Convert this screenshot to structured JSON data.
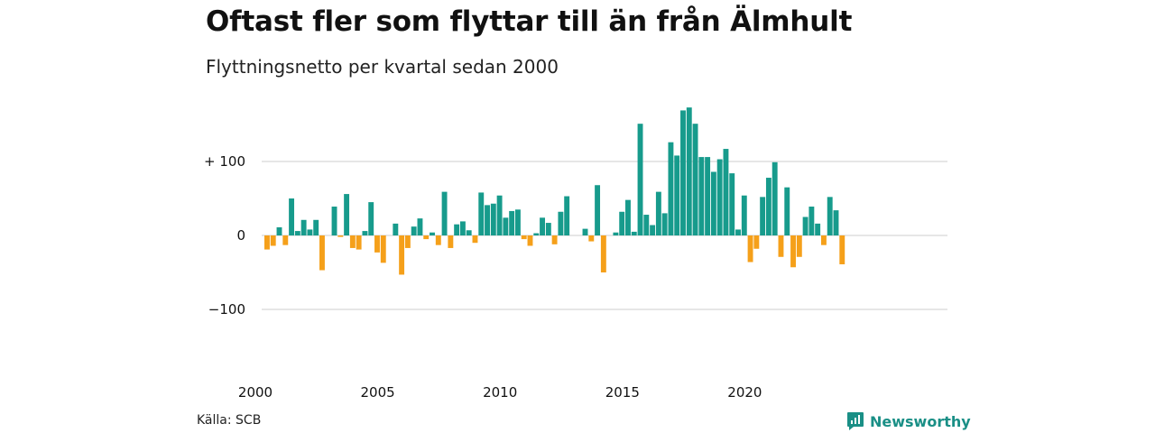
{
  "title": "Oftast fler som flyttar till än från Älmhult",
  "subtitle": "Flyttningsnetto per kvartal sedan 2000",
  "source": "Källa: SCB",
  "brand": "Newsworthy",
  "colors": {
    "positive": "#179b8c",
    "negative": "#f5a01a",
    "grid": "#dddddd",
    "brand": "#1a8f86"
  },
  "chart_data": {
    "type": "bar",
    "xlabel": "",
    "ylabel": "",
    "ylim": [
      -130,
      175
    ],
    "yticks": [
      {
        "value": 100,
        "label": "+ 100"
      },
      {
        "value": 0,
        "label": "0"
      },
      {
        "value": -100,
        "label": "−100"
      }
    ],
    "xticks": [
      {
        "year": 2000,
        "label": "2000"
      },
      {
        "year": 2005,
        "label": "2005"
      },
      {
        "year": 2010,
        "label": "2010"
      },
      {
        "year": 2015,
        "label": "2015"
      },
      {
        "year": 2020,
        "label": "2020"
      }
    ],
    "grid": true,
    "legend": "none",
    "categories": [
      "2000 Q1",
      "2000 Q2",
      "2000 Q3",
      "2000 Q4",
      "2001 Q1",
      "2001 Q2",
      "2001 Q3",
      "2001 Q4",
      "2002 Q1",
      "2002 Q2",
      "2002 Q3",
      "2002 Q4",
      "2003 Q1",
      "2003 Q2",
      "2003 Q3",
      "2003 Q4",
      "2004 Q1",
      "2004 Q2",
      "2004 Q3",
      "2004 Q4",
      "2005 Q1",
      "2005 Q2",
      "2005 Q3",
      "2005 Q4",
      "2006 Q1",
      "2006 Q2",
      "2006 Q3",
      "2006 Q4",
      "2007 Q1",
      "2007 Q2",
      "2007 Q3",
      "2007 Q4",
      "2008 Q1",
      "2008 Q2",
      "2008 Q3",
      "2008 Q4",
      "2009 Q1",
      "2009 Q2",
      "2009 Q3",
      "2009 Q4",
      "2010 Q1",
      "2010 Q2",
      "2010 Q3",
      "2010 Q4",
      "2011 Q1",
      "2011 Q2",
      "2011 Q3",
      "2011 Q4",
      "2012 Q1",
      "2012 Q2",
      "2012 Q3",
      "2012 Q4",
      "2013 Q1",
      "2013 Q2",
      "2013 Q3",
      "2013 Q4",
      "2014 Q1",
      "2014 Q2",
      "2014 Q3",
      "2014 Q4",
      "2015 Q1",
      "2015 Q2",
      "2015 Q3",
      "2015 Q4",
      "2016 Q1",
      "2016 Q2",
      "2016 Q3",
      "2016 Q4",
      "2017 Q1",
      "2017 Q2",
      "2017 Q3",
      "2017 Q4",
      "2018 Q1",
      "2018 Q2",
      "2018 Q3",
      "2018 Q4",
      "2019 Q1",
      "2019 Q2",
      "2019 Q3",
      "2019 Q4",
      "2020 Q1",
      "2020 Q2",
      "2020 Q3",
      "2020 Q4",
      "2021 Q1",
      "2021 Q2",
      "2021 Q3",
      "2021 Q4",
      "2022 Q1",
      "2022 Q2",
      "2022 Q3",
      "2022 Q4",
      "2023 Q1",
      "2023 Q2",
      "2023 Q3"
    ],
    "values": [
      -19,
      -14,
      11,
      -13,
      50,
      6,
      21,
      8,
      21,
      -47,
      0,
      39,
      -2,
      56,
      -17,
      -19,
      6,
      45,
      -23,
      -37,
      0,
      16,
      -53,
      -17,
      12,
      23,
      -5,
      4,
      -13,
      59,
      -17,
      15,
      19,
      7,
      -10,
      58,
      41,
      43,
      54,
      24,
      33,
      35,
      -5,
      -14,
      3,
      24,
      17,
      -12,
      32,
      53,
      0,
      0,
      9,
      -8,
      68,
      -50,
      0,
      4,
      32,
      48,
      5,
      151,
      28,
      14,
      59,
      30,
      126,
      108,
      169,
      173,
      151,
      106,
      106,
      86,
      103,
      117,
      84,
      8,
      54,
      -36,
      -18,
      52,
      78,
      99,
      -29,
      65,
      -43,
      -29,
      25,
      39,
      16,
      -13,
      52,
      34,
      -39
    ]
  }
}
